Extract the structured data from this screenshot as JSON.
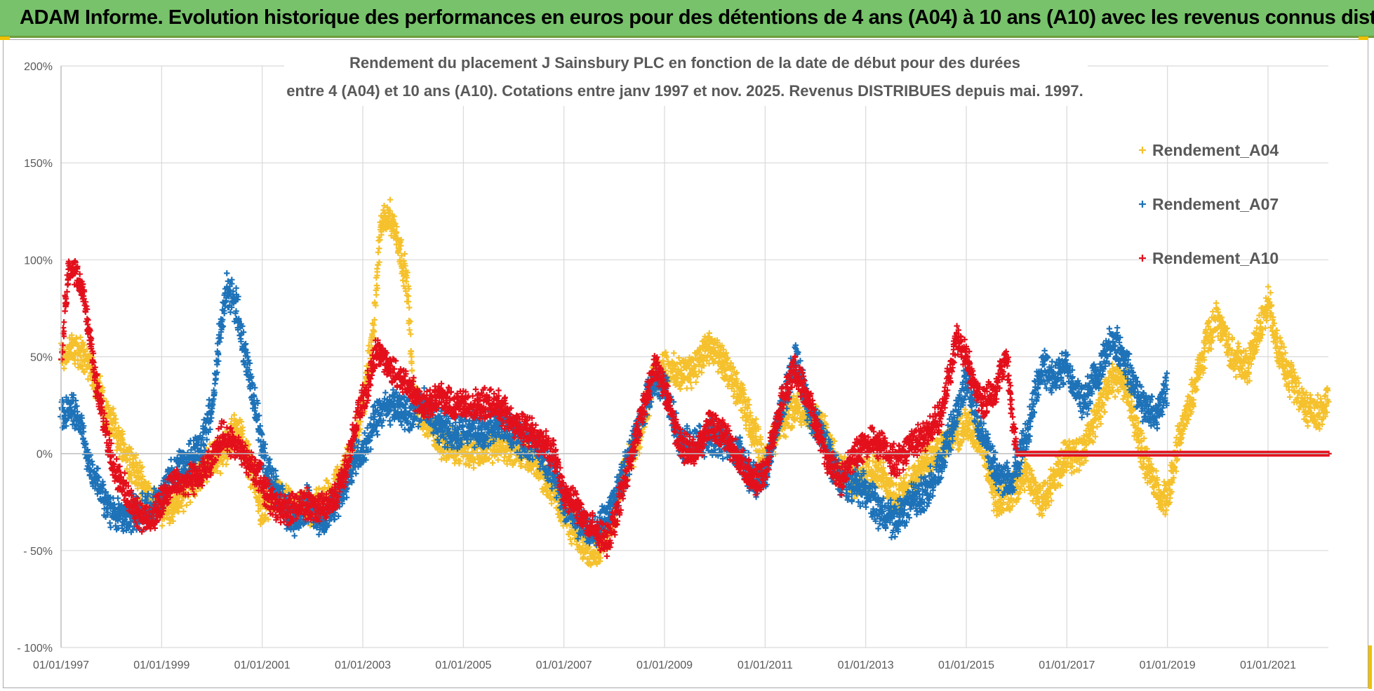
{
  "page": {
    "banner_title": "ADAM Informe. Evolution historique des performances en euros pour des détentions de 4 ans (A04) à 10 ans (A10) avec les revenus connus distribués",
    "banner_color": "#77c26b"
  },
  "chart_data": {
    "type": "scatter",
    "title_line1": "Rendement du placement J Sainsbury PLC en fonction de la date de début pour des durées",
    "title_line2": "entre 4 (A04) et 10 ans (A10). Cotations entre janv 1997 et nov. 2025. Revenus DISTRIBUES depuis mai. 1997.",
    "xlabel": "",
    "ylabel": "",
    "x_range": [
      1997.0,
      2022.2
    ],
    "ylim": [
      -100,
      200
    ],
    "grid": true,
    "legend_position": "top-right",
    "marker": "+",
    "y_ticks": [
      {
        "value": 200,
        "label": "200%"
      },
      {
        "value": 150,
        "label": "150%"
      },
      {
        "value": 100,
        "label": "100%"
      },
      {
        "value": 50,
        "label": "50%"
      },
      {
        "value": 0,
        "label": "0%"
      },
      {
        "value": -50,
        "label": "- 50%"
      },
      {
        "value": -100,
        "label": "- 100%"
      }
    ],
    "x_ticks": [
      {
        "value": 1997,
        "label": "01/01/1997"
      },
      {
        "value": 1999,
        "label": "01/01/1999"
      },
      {
        "value": 2001,
        "label": "01/01/2001"
      },
      {
        "value": 2003,
        "label": "01/01/2003"
      },
      {
        "value": 2005,
        "label": "01/01/2005"
      },
      {
        "value": 2007,
        "label": "01/01/2007"
      },
      {
        "value": 2009,
        "label": "01/01/2009"
      },
      {
        "value": 2011,
        "label": "01/01/2011"
      },
      {
        "value": 2013,
        "label": "01/01/2013"
      },
      {
        "value": 2015,
        "label": "01/01/2015"
      },
      {
        "value": 2017,
        "label": "01/01/2017"
      },
      {
        "value": 2019,
        "label": "01/01/2019"
      },
      {
        "value": 2021,
        "label": "01/01/2021"
      }
    ],
    "series": [
      {
        "name": "Rendement_A04",
        "color": "#f5c12c",
        "spread": 7,
        "points": [
          [
            1997.0,
            50
          ],
          [
            1997.3,
            55
          ],
          [
            1997.6,
            45
          ],
          [
            1997.9,
            20
          ],
          [
            1998.2,
            5
          ],
          [
            1998.5,
            -10
          ],
          [
            1998.8,
            -25
          ],
          [
            1999.0,
            -28
          ],
          [
            1999.3,
            -25
          ],
          [
            1999.6,
            -15
          ],
          [
            1999.9,
            -5
          ],
          [
            2000.2,
            0
          ],
          [
            2000.5,
            15
          ],
          [
            2000.8,
            -10
          ],
          [
            2001.0,
            -30
          ],
          [
            2001.3,
            -20
          ],
          [
            2001.6,
            -30
          ],
          [
            2001.9,
            -28
          ],
          [
            2002.2,
            -25
          ],
          [
            2002.5,
            -15
          ],
          [
            2002.8,
            0
          ],
          [
            2003.0,
            25
          ],
          [
            2003.2,
            60
          ],
          [
            2003.35,
            115
          ],
          [
            2003.5,
            125
          ],
          [
            2003.7,
            110
          ],
          [
            2003.9,
            85
          ],
          [
            2004.0,
            30
          ],
          [
            2004.3,
            15
          ],
          [
            2004.6,
            5
          ],
          [
            2005.0,
            3
          ],
          [
            2005.3,
            0
          ],
          [
            2005.6,
            5
          ],
          [
            2006.0,
            2
          ],
          [
            2006.4,
            -3
          ],
          [
            2006.8,
            -20
          ],
          [
            2007.0,
            -30
          ],
          [
            2007.3,
            -45
          ],
          [
            2007.6,
            -50
          ],
          [
            2007.9,
            -40
          ],
          [
            2008.2,
            -10
          ],
          [
            2008.5,
            10
          ],
          [
            2008.8,
            40
          ],
          [
            2009.0,
            45
          ],
          [
            2009.3,
            40
          ],
          [
            2009.6,
            45
          ],
          [
            2009.9,
            55
          ],
          [
            2010.2,
            45
          ],
          [
            2010.5,
            30
          ],
          [
            2010.8,
            10
          ],
          [
            2011.0,
            -5
          ],
          [
            2011.3,
            15
          ],
          [
            2011.6,
            25
          ],
          [
            2011.9,
            20
          ],
          [
            2012.2,
            10
          ],
          [
            2012.5,
            -10
          ],
          [
            2012.8,
            -15
          ],
          [
            2013.0,
            -10
          ],
          [
            2013.3,
            -10
          ],
          [
            2013.6,
            -25
          ],
          [
            2013.9,
            -15
          ],
          [
            2014.2,
            -5
          ],
          [
            2014.5,
            5
          ],
          [
            2014.8,
            10
          ],
          [
            2015.0,
            15
          ],
          [
            2015.3,
            5
          ],
          [
            2015.6,
            -25
          ],
          [
            2015.9,
            -20
          ],
          [
            2016.2,
            -10
          ],
          [
            2016.5,
            -25
          ],
          [
            2016.8,
            -10
          ],
          [
            2017.0,
            0
          ],
          [
            2017.3,
            0
          ],
          [
            2017.6,
            20
          ],
          [
            2017.9,
            40
          ],
          [
            2018.2,
            35
          ],
          [
            2018.5,
            0
          ],
          [
            2018.8,
            -20
          ],
          [
            2019.0,
            -25
          ],
          [
            2019.2,
            5
          ],
          [
            2019.5,
            30
          ],
          [
            2019.8,
            60
          ],
          [
            2020.0,
            70
          ],
          [
            2020.3,
            50
          ],
          [
            2020.6,
            45
          ],
          [
            2020.9,
            70
          ],
          [
            2021.0,
            80
          ],
          [
            2021.2,
            55
          ],
          [
            2021.4,
            40
          ],
          [
            2021.7,
            25
          ],
          [
            2022.0,
            20
          ],
          [
            2022.2,
            30
          ]
        ]
      },
      {
        "name": "Rendement_A07",
        "color": "#1d72b8",
        "spread": 7,
        "points": [
          [
            1997.0,
            18
          ],
          [
            1997.2,
            25
          ],
          [
            1997.4,
            15
          ],
          [
            1997.6,
            -10
          ],
          [
            1997.8,
            -20
          ],
          [
            1998.0,
            -30
          ],
          [
            1998.3,
            -32
          ],
          [
            1998.6,
            -30
          ],
          [
            1998.9,
            -28
          ],
          [
            1999.2,
            -10
          ],
          [
            1999.5,
            -5
          ],
          [
            1999.8,
            5
          ],
          [
            2000.0,
            25
          ],
          [
            2000.15,
            60
          ],
          [
            2000.3,
            85
          ],
          [
            2000.5,
            75
          ],
          [
            2000.7,
            45
          ],
          [
            2000.9,
            20
          ],
          [
            2001.0,
            0
          ],
          [
            2001.3,
            -20
          ],
          [
            2001.6,
            -35
          ],
          [
            2001.9,
            -25
          ],
          [
            2002.2,
            -35
          ],
          [
            2002.5,
            -25
          ],
          [
            2002.8,
            -5
          ],
          [
            2003.0,
            0
          ],
          [
            2003.3,
            20
          ],
          [
            2003.6,
            25
          ],
          [
            2003.9,
            20
          ],
          [
            2004.2,
            25
          ],
          [
            2004.5,
            15
          ],
          [
            2004.8,
            10
          ],
          [
            2005.1,
            15
          ],
          [
            2005.4,
            10
          ],
          [
            2005.7,
            15
          ],
          [
            2006.0,
            10
          ],
          [
            2006.4,
            5
          ],
          [
            2006.8,
            -10
          ],
          [
            2007.0,
            -25
          ],
          [
            2007.3,
            -35
          ],
          [
            2007.6,
            -40
          ],
          [
            2007.9,
            -30
          ],
          [
            2008.2,
            -10
          ],
          [
            2008.5,
            15
          ],
          [
            2008.8,
            40
          ],
          [
            2009.0,
            35
          ],
          [
            2009.3,
            5
          ],
          [
            2009.6,
            5
          ],
          [
            2009.9,
            10
          ],
          [
            2010.2,
            5
          ],
          [
            2010.5,
            0
          ],
          [
            2010.8,
            -15
          ],
          [
            2011.0,
            -10
          ],
          [
            2011.3,
            20
          ],
          [
            2011.6,
            50
          ],
          [
            2011.9,
            20
          ],
          [
            2012.2,
            5
          ],
          [
            2012.5,
            -15
          ],
          [
            2012.8,
            -15
          ],
          [
            2013.0,
            -20
          ],
          [
            2013.3,
            -30
          ],
          [
            2013.6,
            -35
          ],
          [
            2013.9,
            -25
          ],
          [
            2014.2,
            -20
          ],
          [
            2014.5,
            -5
          ],
          [
            2014.8,
            20
          ],
          [
            2015.0,
            40
          ],
          [
            2015.3,
            10
          ],
          [
            2015.6,
            -10
          ],
          [
            2015.9,
            -15
          ],
          [
            2016.2,
            10
          ],
          [
            2016.5,
            45
          ],
          [
            2016.8,
            40
          ],
          [
            2017.0,
            45
          ],
          [
            2017.3,
            25
          ],
          [
            2017.6,
            40
          ],
          [
            2017.9,
            60
          ],
          [
            2018.2,
            45
          ],
          [
            2018.5,
            25
          ],
          [
            2018.8,
            20
          ],
          [
            2019.0,
            35
          ]
        ]
      },
      {
        "name": "Rendement_A10",
        "color": "#e3101c",
        "spread": 6,
        "points": [
          [
            1997.0,
            50
          ],
          [
            1997.15,
            95
          ],
          [
            1997.35,
            90
          ],
          [
            1997.5,
            75
          ],
          [
            1997.7,
            35
          ],
          [
            1997.9,
            10
          ],
          [
            1998.1,
            -10
          ],
          [
            1998.4,
            -25
          ],
          [
            1998.7,
            -35
          ],
          [
            1998.9,
            -30
          ],
          [
            1999.2,
            -15
          ],
          [
            1999.5,
            -15
          ],
          [
            1999.8,
            -10
          ],
          [
            2000.0,
            -5
          ],
          [
            2000.2,
            10
          ],
          [
            2000.4,
            5
          ],
          [
            2000.6,
            0
          ],
          [
            2000.9,
            -10
          ],
          [
            2001.2,
            -25
          ],
          [
            2001.5,
            -30
          ],
          [
            2001.8,
            -25
          ],
          [
            2002.1,
            -28
          ],
          [
            2002.4,
            -25
          ],
          [
            2002.7,
            -5
          ],
          [
            2002.9,
            20
          ],
          [
            2003.1,
            35
          ],
          [
            2003.3,
            55
          ],
          [
            2003.5,
            45
          ],
          [
            2003.7,
            40
          ],
          [
            2003.9,
            35
          ],
          [
            2004.2,
            25
          ],
          [
            2004.5,
            30
          ],
          [
            2004.8,
            25
          ],
          [
            2005.1,
            25
          ],
          [
            2005.4,
            25
          ],
          [
            2005.7,
            25
          ],
          [
            2006.0,
            15
          ],
          [
            2006.4,
            10
          ],
          [
            2006.8,
            0
          ],
          [
            2007.0,
            -20
          ],
          [
            2007.3,
            -30
          ],
          [
            2007.6,
            -40
          ],
          [
            2007.9,
            -45
          ],
          [
            2008.2,
            -15
          ],
          [
            2008.5,
            15
          ],
          [
            2008.8,
            45
          ],
          [
            2009.0,
            35
          ],
          [
            2009.3,
            5
          ],
          [
            2009.6,
            0
          ],
          [
            2009.9,
            15
          ],
          [
            2010.2,
            10
          ],
          [
            2010.5,
            -5
          ],
          [
            2010.8,
            -15
          ],
          [
            2011.0,
            -10
          ],
          [
            2011.3,
            25
          ],
          [
            2011.6,
            45
          ],
          [
            2011.9,
            25
          ],
          [
            2012.2,
            0
          ],
          [
            2012.5,
            -15
          ],
          [
            2012.8,
            0
          ],
          [
            2013.0,
            5
          ],
          [
            2013.3,
            5
          ],
          [
            2013.6,
            -5
          ],
          [
            2013.9,
            5
          ],
          [
            2014.2,
            10
          ],
          [
            2014.5,
            20
          ],
          [
            2014.8,
            60
          ],
          [
            2015.0,
            50
          ],
          [
            2015.3,
            25
          ],
          [
            2015.6,
            35
          ],
          [
            2015.8,
            50
          ],
          [
            2016.0,
            0
          ],
          [
            2022.2,
            0
          ]
        ]
      }
    ]
  }
}
